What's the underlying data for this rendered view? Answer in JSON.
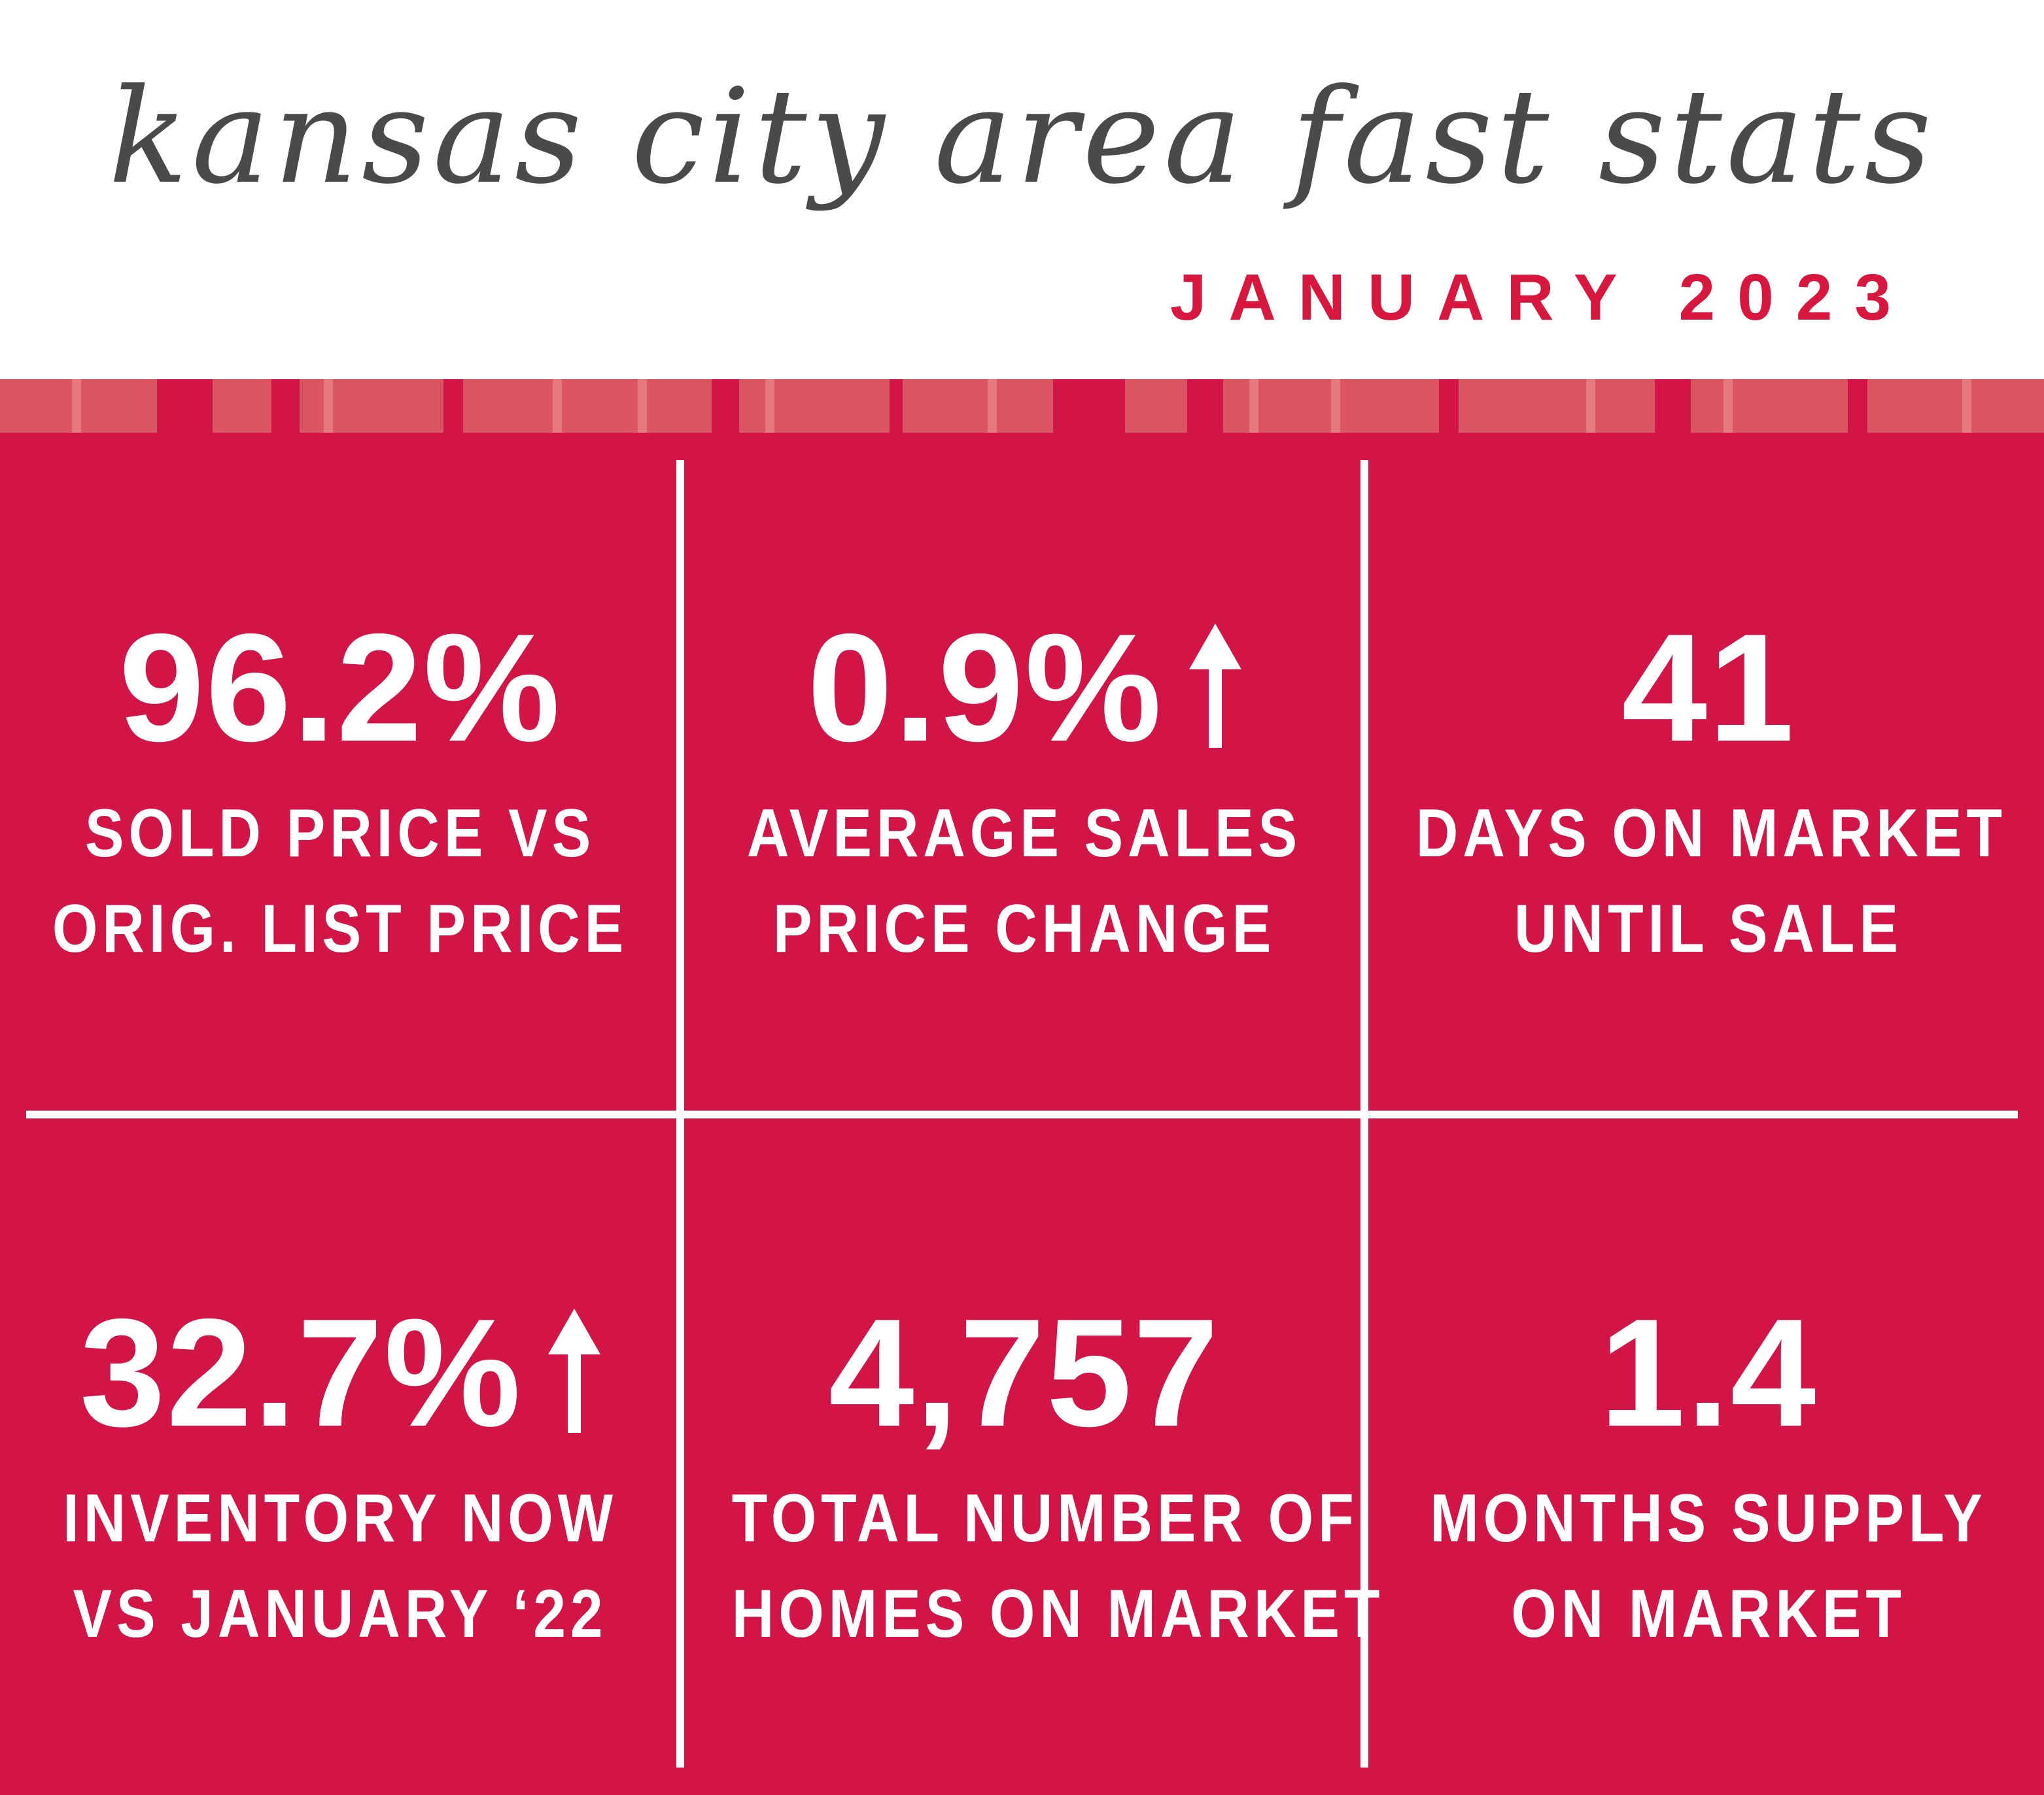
{
  "header": {
    "title": "kansas city area fast stats",
    "subtitle": "JANUARY 2023"
  },
  "colors": {
    "accent_red": "#d21446",
    "title_gray": "#4a4a4a",
    "subtitle_red": "#d8173f",
    "stripe_pink": "#db5461",
    "stripe_light": "#e5797d",
    "text_white": "#ffffff"
  },
  "stats": [
    {
      "value": "96.2%",
      "label_line1": "SOLD PRICE VS",
      "label_line2": "ORIG. LIST PRICE",
      "trend_icon": ""
    },
    {
      "value": "0.9%",
      "label_line1": "AVERAGE SALES",
      "label_line2": "PRICE CHANGE",
      "trend_icon": "arrow-up-icon"
    },
    {
      "value": "41",
      "label_line1": "DAYS ON MARKET",
      "label_line2": "UNTIL SALE",
      "trend_icon": ""
    },
    {
      "value": "32.7%",
      "label_line1": "INVENTORY NOW",
      "label_line2": "VS JANUARY ‘22",
      "trend_icon": "arrow-up-icon"
    },
    {
      "value": "4,757",
      "label_line1": "TOTAL NUMBER OF",
      "label_line2": "HOMES ON MARKET",
      "trend_icon": ""
    },
    {
      "value": "1.4",
      "label_line1": "MONTHS SUPPLY",
      "label_line2": "ON MARKET",
      "trend_icon": ""
    }
  ]
}
